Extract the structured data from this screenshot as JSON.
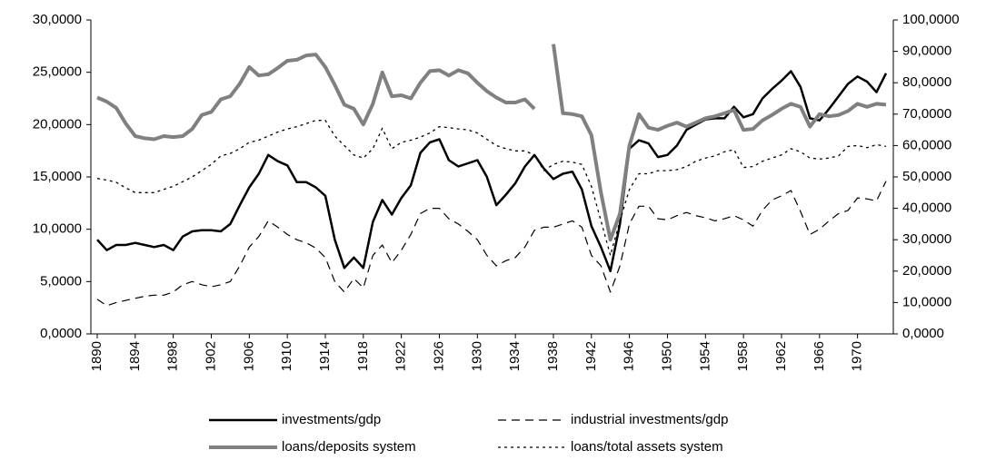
{
  "chart_data": {
    "type": "line",
    "x": [
      1890,
      1891,
      1892,
      1893,
      1894,
      1895,
      1896,
      1897,
      1898,
      1899,
      1900,
      1901,
      1902,
      1903,
      1904,
      1905,
      1906,
      1907,
      1908,
      1909,
      1910,
      1911,
      1912,
      1913,
      1914,
      1915,
      1916,
      1917,
      1918,
      1919,
      1920,
      1921,
      1922,
      1923,
      1924,
      1925,
      1926,
      1927,
      1928,
      1929,
      1930,
      1931,
      1932,
      1933,
      1934,
      1935,
      1936,
      1937,
      1938,
      1939,
      1940,
      1941,
      1942,
      1943,
      1944,
      1945,
      1946,
      1947,
      1948,
      1949,
      1950,
      1951,
      1952,
      1953,
      1954,
      1955,
      1956,
      1957,
      1958,
      1959,
      1960,
      1961,
      1962,
      1963,
      1964,
      1965,
      1966,
      1967,
      1968,
      1969,
      1970,
      1971,
      1972,
      1973
    ],
    "xticks": [
      1890,
      1894,
      1898,
      1902,
      1906,
      1910,
      1914,
      1918,
      1922,
      1926,
      1930,
      1934,
      1938,
      1942,
      1946,
      1950,
      1954,
      1958,
      1962,
      1966,
      1970
    ],
    "ylim": [
      0,
      30
    ],
    "yticks": [
      {
        "value": 0,
        "label": "0,0000"
      },
      {
        "value": 5,
        "label": "5,0000"
      },
      {
        "value": 10,
        "label": "10,0000"
      },
      {
        "value": 15,
        "label": "15,0000"
      },
      {
        "value": 20,
        "label": "20,0000"
      },
      {
        "value": 25,
        "label": "25,0000"
      },
      {
        "value": 30,
        "label": "30,0000"
      }
    ],
    "y2lim": [
      0,
      100
    ],
    "y2ticks": [
      {
        "value": 0,
        "label": "0,0000"
      },
      {
        "value": 10,
        "label": "10,0000"
      },
      {
        "value": 20,
        "label": "20,0000"
      },
      {
        "value": 30,
        "label": "30,0000"
      },
      {
        "value": 40,
        "label": "40,0000"
      },
      {
        "value": 50,
        "label": "50,0000"
      },
      {
        "value": 60,
        "label": "60,0000"
      },
      {
        "value": 70,
        "label": "70,0000"
      },
      {
        "value": 80,
        "label": "80,0000"
      },
      {
        "value": 90,
        "label": "90,0000"
      },
      {
        "value": 100,
        "label": "100,0000"
      }
    ],
    "grid": false,
    "legend": "bottom",
    "series": [
      {
        "name": "investments/gdp",
        "color": "#000000",
        "linestyle": "solid",
        "linewidth": 2.5,
        "axis": "y",
        "values": [
          9.0,
          8.0,
          8.5,
          8.5,
          8.7,
          8.5,
          8.3,
          8.5,
          8.0,
          9.3,
          9.8,
          9.9,
          9.9,
          9.8,
          10.5,
          12.3,
          14.0,
          15.3,
          17.1,
          16.5,
          16.1,
          14.5,
          14.5,
          14.0,
          13.2,
          9.0,
          6.3,
          7.3,
          6.3,
          10.7,
          12.8,
          11.4,
          13.0,
          14.2,
          17.3,
          18.3,
          18.6,
          16.6,
          16.0,
          16.3,
          16.6,
          15.0,
          12.3,
          13.3,
          14.4,
          16.0,
          17.1,
          15.8,
          14.8,
          15.3,
          15.5,
          13.8,
          10.3,
          8.3,
          6.0,
          10.5,
          17.7,
          18.5,
          18.2,
          16.9,
          17.1,
          18.0,
          19.5,
          20.0,
          20.5,
          20.6,
          20.6,
          21.7,
          20.7,
          21.0,
          22.5,
          23.4,
          24.2,
          25.1,
          23.6,
          20.6,
          20.4,
          21.5,
          22.7,
          23.9,
          24.6,
          24.1,
          23.1,
          24.9
        ]
      },
      {
        "name": "industrial investments/gdp",
        "color": "#000000",
        "linestyle": "dashed",
        "linewidth": 1.2,
        "axis": "y",
        "values": [
          3.3,
          2.7,
          3.0,
          3.2,
          3.4,
          3.6,
          3.7,
          3.7,
          4.0,
          4.7,
          5.0,
          4.7,
          4.5,
          4.7,
          5.0,
          6.5,
          8.3,
          9.3,
          10.8,
          10.2,
          9.5,
          9.0,
          8.7,
          8.2,
          7.3,
          5.0,
          4.0,
          5.3,
          4.4,
          7.5,
          8.5,
          6.8,
          8.0,
          9.5,
          11.5,
          12.0,
          12.0,
          11.0,
          10.5,
          9.8,
          9.0,
          7.5,
          6.5,
          7.0,
          7.3,
          8.3,
          9.9,
          10.2,
          10.2,
          10.5,
          10.8,
          10.2,
          7.5,
          6.5,
          4.0,
          6.5,
          10.5,
          12.2,
          12.2,
          11.0,
          10.9,
          11.3,
          11.6,
          11.3,
          11.1,
          10.8,
          11.0,
          11.3,
          10.9,
          10.3,
          11.8,
          12.8,
          13.2,
          13.7,
          11.7,
          9.5,
          10.0,
          10.8,
          11.5,
          11.8,
          13.0,
          12.9,
          12.7,
          14.6
        ]
      },
      {
        "name": "loans/deposits system",
        "color": "#808080",
        "linestyle": "solid",
        "linewidth": 4,
        "axis": "y2",
        "values": [
          75.3,
          74.0,
          72.0,
          67.0,
          63.0,
          62.3,
          62.0,
          63.0,
          62.7,
          63.0,
          65.3,
          69.7,
          70.7,
          74.7,
          75.7,
          79.7,
          85.0,
          82.3,
          82.7,
          84.7,
          87.0,
          87.3,
          88.7,
          89.0,
          85.0,
          79.3,
          73.0,
          71.7,
          66.7,
          73.3,
          83.3,
          75.7,
          76.0,
          75.0,
          80.0,
          83.7,
          84.0,
          82.3,
          84.0,
          83.0,
          80.0,
          77.3,
          75.3,
          73.7,
          73.7,
          74.7,
          71.7,
          null,
          92.3,
          70.3,
          70.0,
          69.3,
          63.3,
          45.0,
          30.0,
          38.3,
          60.0,
          70.0,
          65.7,
          65.0,
          66.3,
          67.3,
          66.0,
          67.3,
          68.7,
          69.3,
          70.3,
          71.3,
          65.0,
          65.3,
          68.0,
          69.7,
          71.7,
          73.3,
          72.3,
          66.0,
          70.0,
          69.3,
          69.7,
          71.0,
          73.3,
          72.3,
          73.3,
          73.0
        ]
      },
      {
        "name": "loans/total assets system",
        "color": "#000000",
        "linestyle": "dotted",
        "linewidth": 1.3,
        "axis": "y2",
        "values": [
          49.5,
          49.0,
          48.3,
          46.5,
          45.0,
          45.0,
          45.0,
          46.0,
          47.0,
          48.5,
          50.0,
          52.0,
          54.0,
          56.7,
          57.5,
          59.0,
          61.0,
          61.7,
          63.0,
          64.3,
          65.3,
          66.0,
          67.0,
          68.0,
          68.0,
          63.0,
          60.0,
          57.0,
          56.0,
          59.0,
          65.5,
          59.0,
          61.0,
          61.7,
          62.7,
          64.0,
          66.0,
          65.7,
          65.3,
          65.0,
          64.0,
          62.0,
          60.0,
          59.0,
          58.3,
          58.3,
          57.0,
          52.0,
          54.0,
          55.0,
          54.7,
          54.0,
          47.0,
          36.0,
          25.0,
          36.0,
          46.0,
          51.0,
          51.0,
          52.0,
          52.0,
          52.3,
          53.3,
          55.0,
          56.0,
          56.7,
          58.0,
          58.7,
          53.0,
          53.3,
          55.0,
          56.0,
          57.0,
          59.0,
          58.0,
          56.0,
          55.7,
          56.0,
          56.7,
          59.7,
          60.0,
          59.3,
          60.3,
          59.7
        ]
      }
    ]
  }
}
